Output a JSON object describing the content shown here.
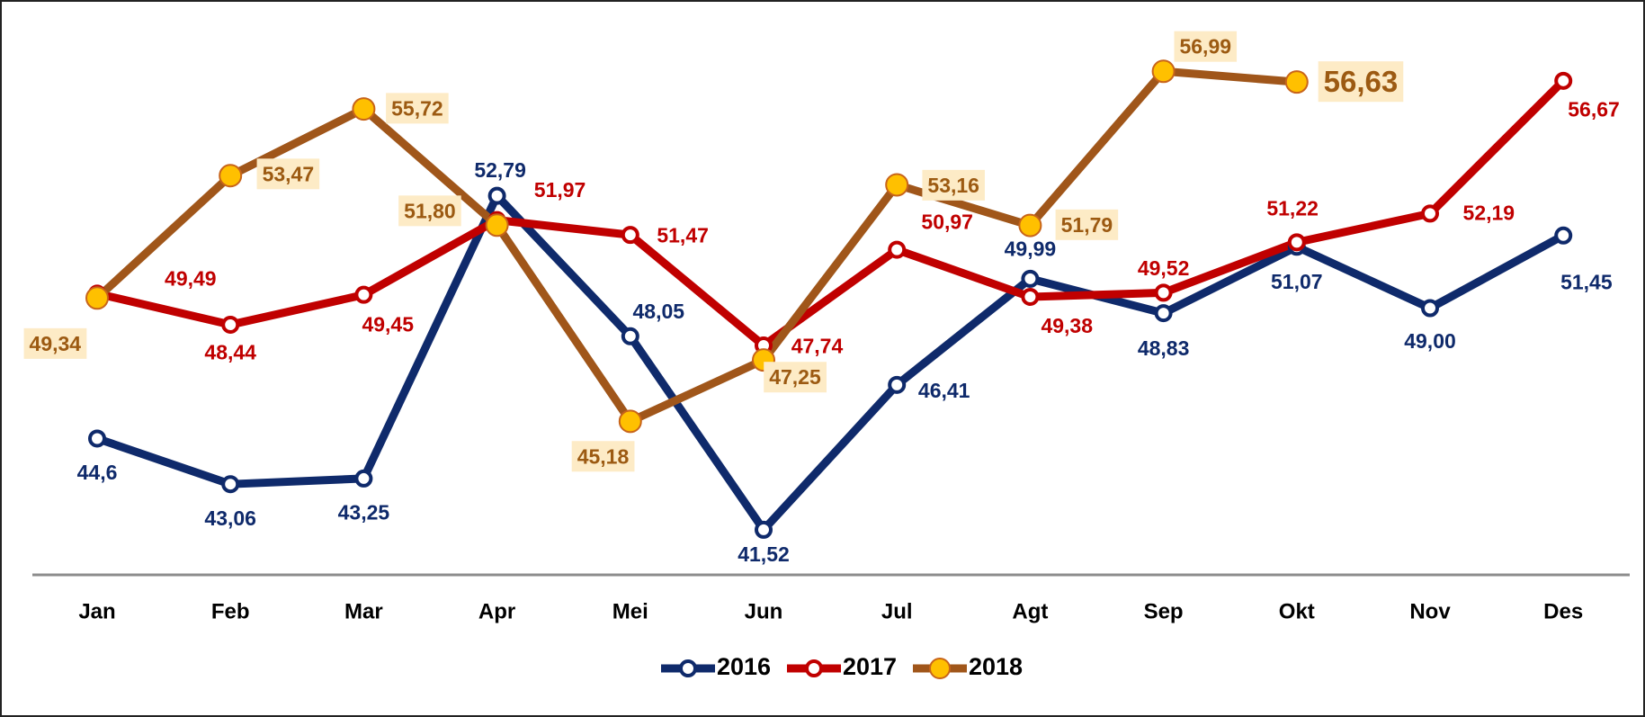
{
  "chart_data": {
    "type": "line",
    "categories": [
      "Jan",
      "Feb",
      "Mar",
      "Apr",
      "Mei",
      "Jun",
      "Jul",
      "Agt",
      "Sep",
      "Okt",
      "Nov",
      "Des"
    ],
    "ylim": [
      40,
      58
    ],
    "legend": "bottom",
    "series": [
      {
        "name": "2016",
        "color": "#0f2a6b",
        "marker_fill": "#ffffff",
        "values": [
          44.6,
          43.06,
          43.25,
          52.79,
          48.05,
          41.52,
          46.41,
          49.99,
          48.83,
          51.07,
          49.0,
          51.45
        ],
        "value_labels": [
          "44,6",
          "43,06",
          "43,25",
          "52,79",
          "48,05",
          "41,52",
          "46,41",
          "49,99",
          "48,83",
          "51,07",
          "49,00",
          "51,45"
        ]
      },
      {
        "name": "2017",
        "color": "#c00000",
        "marker_fill": "#ffffff",
        "values": [
          49.49,
          48.44,
          49.45,
          51.97,
          51.47,
          47.74,
          50.97,
          49.38,
          49.52,
          51.22,
          52.19,
          56.67
        ],
        "value_labels": [
          "49,49",
          "48,44",
          "49,45",
          "51,97",
          "51,47",
          "47,74",
          "50,97",
          "49,38",
          "49,52",
          "51,22",
          "52,19",
          "56,67"
        ]
      },
      {
        "name": "2018",
        "color": "#a0561a",
        "marker_fill": "#ffc000",
        "values": [
          49.34,
          53.47,
          55.72,
          51.8,
          45.18,
          47.25,
          53.16,
          51.79,
          56.99,
          56.63,
          null,
          null
        ],
        "value_labels": [
          "49,34",
          "53,47",
          "55,72",
          "51,80",
          "45,18",
          "47,25",
          "53,16",
          "51,79",
          "56,99",
          "56,63",
          null,
          null
        ]
      }
    ]
  }
}
